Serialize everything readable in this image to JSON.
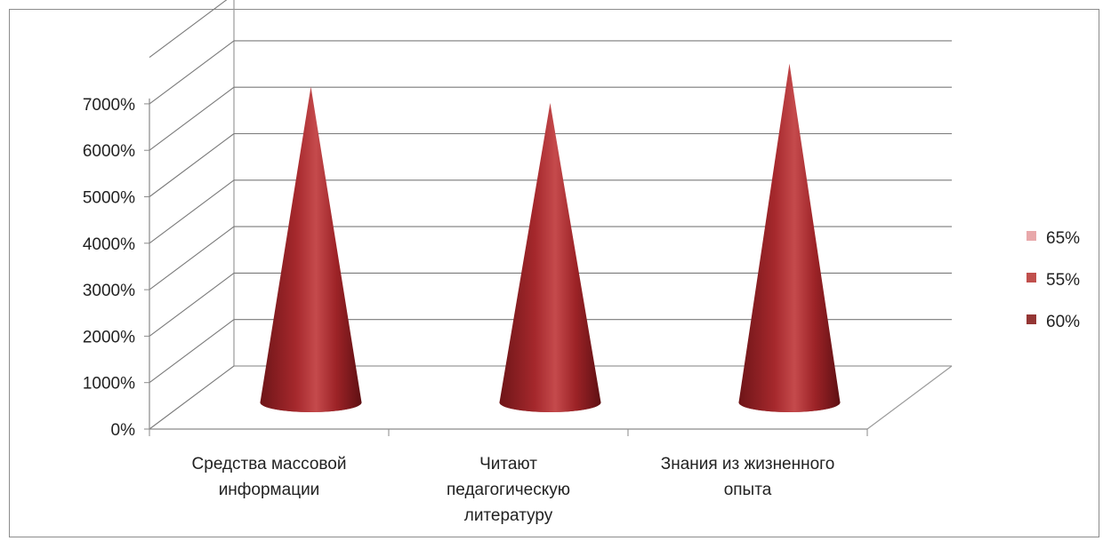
{
  "chart_data": {
    "type": "bar",
    "shape": "cone",
    "categories": [
      [
        "Средства массовой",
        "информации"
      ],
      [
        "Читают",
        "педагогическую",
        "литературу"
      ],
      [
        "Знания из жизненного",
        "опыта"
      ]
    ],
    "values": [
      6700,
      6350,
      7200
    ],
    "y_tick_labels": [
      "0%",
      "1000%",
      "2000%",
      "3000%",
      "4000%",
      "5000%",
      "6000%",
      "7000%"
    ],
    "ylim": [
      0,
      7000
    ],
    "grid": true,
    "legend_position": "right",
    "legend": [
      {
        "label": "65%",
        "color": "#e8a8aa"
      },
      {
        "label": "55%",
        "color": "#c0504d"
      },
      {
        "label": "60%",
        "color": "#943634"
      }
    ],
    "cone_color": "#a8262a"
  }
}
